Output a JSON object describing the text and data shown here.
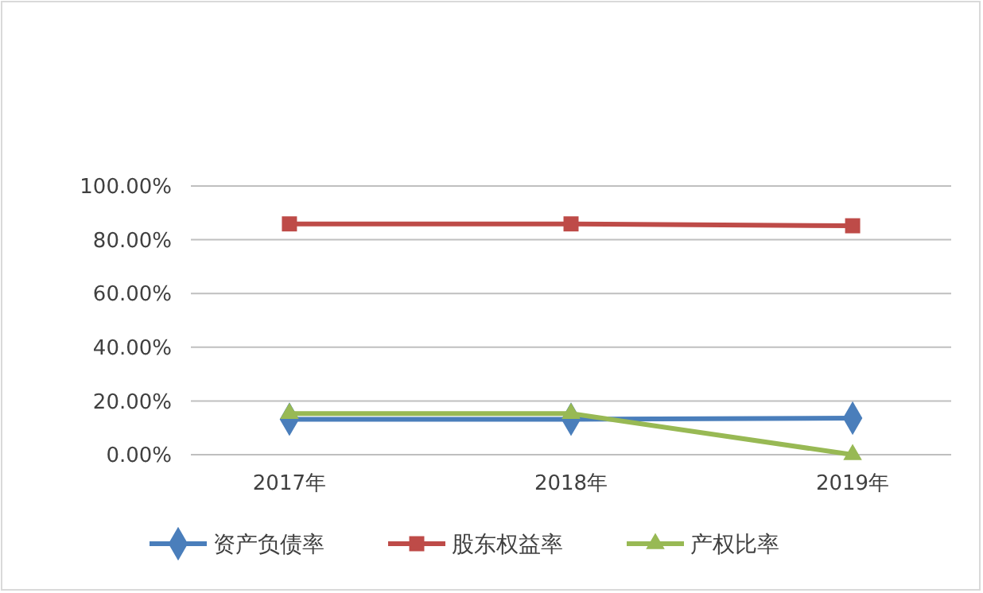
{
  "chart_data": {
    "type": "line",
    "categories": [
      "2017年",
      "2018年",
      "2019年"
    ],
    "series": [
      {
        "name": "资产负债率",
        "color": "#4a7ebb",
        "values": [
          13.2,
          13.2,
          13.6
        ],
        "marker": "diamond"
      },
      {
        "name": "股东权益率",
        "color": "#be4b48",
        "values": [
          85.9,
          85.9,
          85.2
        ],
        "marker": "square"
      },
      {
        "name": "产权比率",
        "color": "#98b954",
        "values": [
          15.3,
          15.3,
          0
        ],
        "marker": "triangle"
      }
    ],
    "ylim": [
      0,
      100
    ],
    "yticks": [
      {
        "value": 0,
        "label": "0.00%"
      },
      {
        "value": 20,
        "label": "20.00%"
      },
      {
        "value": 40,
        "label": "40.00%"
      },
      {
        "value": 60,
        "label": "60.00%"
      },
      {
        "value": 80,
        "label": "80.00%"
      },
      {
        "value": 100,
        "label": "100.00%"
      }
    ],
    "grid": "y",
    "legend": "bottom"
  }
}
